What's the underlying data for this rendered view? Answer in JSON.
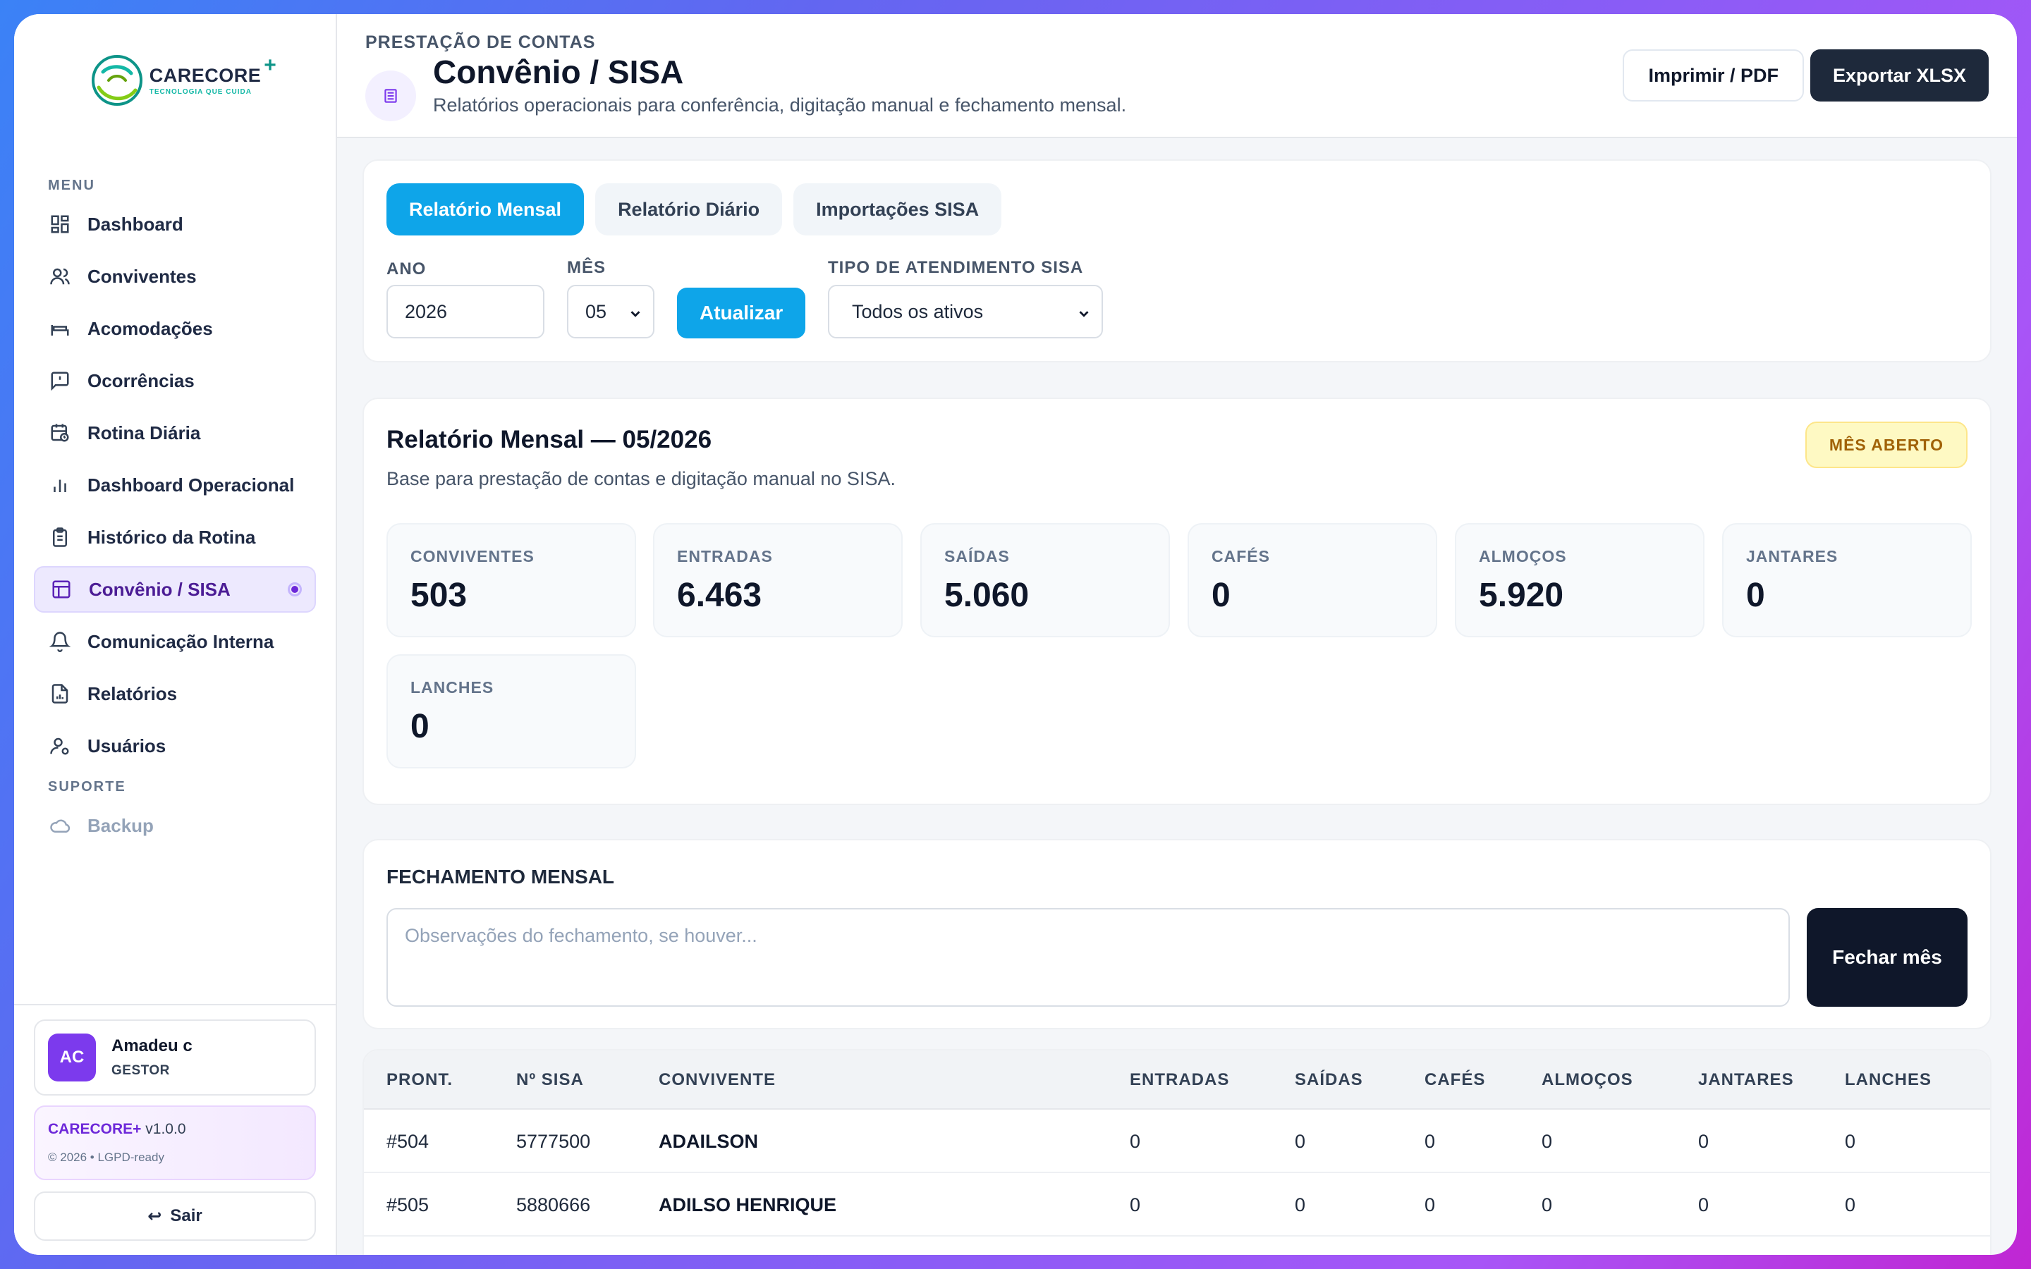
{
  "brand": {
    "name": "CARECORE",
    "plus": "+",
    "tagline": "TECNOLOGIA QUE CUIDA"
  },
  "sidebar": {
    "menu_label": "MENU",
    "items": [
      {
        "label": "Dashboard",
        "icon": "grid-icon"
      },
      {
        "label": "Conviventes",
        "icon": "users-icon"
      },
      {
        "label": "Acomodações",
        "icon": "bed-icon"
      },
      {
        "label": "Ocorrências",
        "icon": "message-alert-icon"
      },
      {
        "label": "Rotina Diária",
        "icon": "calendar-clock-icon"
      },
      {
        "label": "Dashboard Operacional",
        "icon": "bar-chart-icon"
      },
      {
        "label": "Histórico da Rotina",
        "icon": "clipboard-icon"
      },
      {
        "label": "Convênio / SISA",
        "icon": "layout-icon",
        "active": true
      },
      {
        "label": "Comunicação Interna",
        "icon": "bell-icon"
      },
      {
        "label": "Relatórios",
        "icon": "file-chart-icon"
      },
      {
        "label": "Usuários",
        "icon": "user-cog-icon"
      }
    ],
    "support_label": "SUPORTE",
    "support_items": [
      {
        "label": "Backup",
        "icon": "cloud-icon"
      }
    ]
  },
  "user": {
    "initials": "AC",
    "name": "Amadeu c",
    "role": "GESTOR"
  },
  "version_card": {
    "brand": "CARECORE+",
    "version": "v1.0.0",
    "note": "© 2026 • LGPD-ready"
  },
  "logout_label": "Sair",
  "header": {
    "eyebrow": "PRESTAÇÃO DE CONTAS",
    "title": "Convênio / SISA",
    "subtitle": "Relatórios operacionais para conferência, digitação manual e fechamento mensal.",
    "print_label": "Imprimir / PDF",
    "export_label": "Exportar XLSX"
  },
  "tabs": [
    "Relatório Mensal",
    "Relatório Diário",
    "Importações SISA"
  ],
  "filters": {
    "year_label": "ANO",
    "year_value": "2026",
    "month_label": "MÊS",
    "month_value": "05",
    "update_label": "Atualizar",
    "type_label": "TIPO DE ATENDIMENTO SISA",
    "type_value": "Todos os ativos"
  },
  "report": {
    "title": "Relatório Mensal — 05/2026",
    "subtitle": "Base para prestação de contas e digitação manual no SISA.",
    "status_badge": "MÊS ABERTO",
    "stats": [
      {
        "label": "CONVIVENTES",
        "value": "503"
      },
      {
        "label": "ENTRADAS",
        "value": "6.463"
      },
      {
        "label": "SAÍDAS",
        "value": "5.060"
      },
      {
        "label": "CAFÉS",
        "value": "0"
      },
      {
        "label": "ALMOÇOS",
        "value": "5.920"
      },
      {
        "label": "JANTARES",
        "value": "0"
      },
      {
        "label": "LANCHES",
        "value": "0"
      }
    ]
  },
  "closing": {
    "title": "FECHAMENTO MENSAL",
    "placeholder": "Observações do fechamento, se houver...",
    "button_label": "Fechar mês"
  },
  "table": {
    "columns": [
      "PRONT.",
      "Nº SISA",
      "CONVIVENTE",
      "ENTRADAS",
      "SAÍDAS",
      "CAFÉS",
      "ALMOÇOS",
      "JANTARES",
      "LANCHES"
    ],
    "rows": [
      [
        "#504",
        "5777500",
        "ADAILSON",
        "0",
        "0",
        "0",
        "0",
        "0",
        "0"
      ],
      [
        "#505",
        "5880666",
        "ADILSO HENRIQUE",
        "0",
        "0",
        "0",
        "0",
        "0",
        "0"
      ]
    ]
  },
  "colors": {
    "accent": "#0ea5e9",
    "active_nav": "#ede9fe",
    "dark": "#0f172a",
    "avatar": "#7c3aed"
  }
}
